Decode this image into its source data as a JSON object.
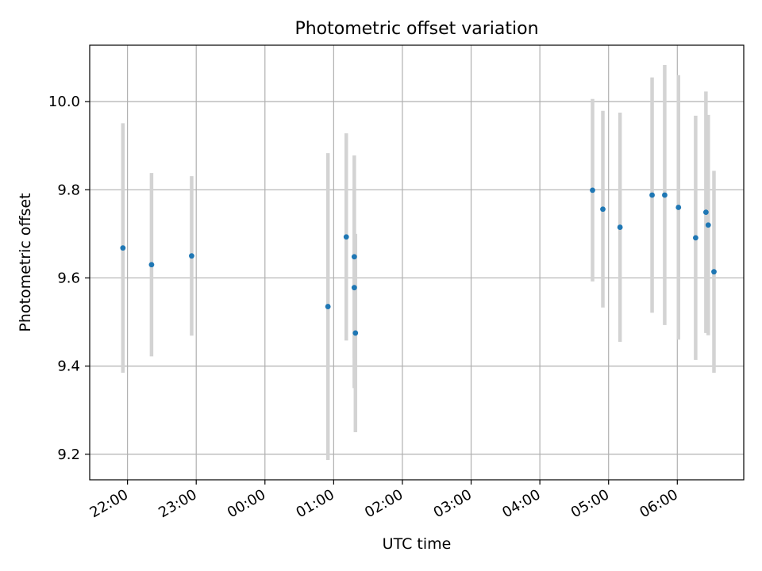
{
  "chart_data": {
    "type": "scatter",
    "title": "Photometric offset variation",
    "xlabel": "UTC time",
    "ylabel": "Photometric offset",
    "grid": true,
    "xlim": [
      "21:27",
      "06:58"
    ],
    "ylim": [
      9.142,
      10.128
    ],
    "x_ticks": [
      "22:00",
      "23:00",
      "00:00",
      "01:00",
      "02:00",
      "03:00",
      "04:00",
      "05:00",
      "06:00"
    ],
    "y_ticks": [
      9.2,
      9.4,
      9.6,
      9.8,
      10.0
    ],
    "y_tick_labels": [
      "9.2",
      "9.4",
      "9.6",
      "9.8",
      "10.0"
    ],
    "series": [
      {
        "marker_color": "#1f77b4",
        "errorbar_color": "#d3d3d3",
        "points": [
          {
            "x": "21:56",
            "y": 9.668,
            "ylow": 9.385,
            "yhigh": 9.951
          },
          {
            "x": "22:21",
            "y": 9.63,
            "ylow": 9.422,
            "yhigh": 9.838
          },
          {
            "x": "22:56",
            "y": 9.65,
            "ylow": 9.469,
            "yhigh": 9.831
          },
          {
            "x": "00:55",
            "y": 9.535,
            "ylow": 9.187,
            "yhigh": 9.883
          },
          {
            "x": "01:11",
            "y": 9.693,
            "ylow": 9.458,
            "yhigh": 9.928
          },
          {
            "x": "01:18",
            "y": 9.648,
            "ylow": 9.418,
            "yhigh": 9.878
          },
          {
            "x": "01:18",
            "y": 9.578,
            "ylow": 9.35,
            "yhigh": 9.806
          },
          {
            "x": "01:19",
            "y": 9.475,
            "ylow": 9.25,
            "yhigh": 9.7
          },
          {
            "x": "04:46",
            "y": 9.799,
            "ylow": 9.592,
            "yhigh": 10.006
          },
          {
            "x": "04:55",
            "y": 9.756,
            "ylow": 9.533,
            "yhigh": 9.979
          },
          {
            "x": "05:10",
            "y": 9.715,
            "ylow": 9.455,
            "yhigh": 9.975
          },
          {
            "x": "05:38",
            "y": 9.788,
            "ylow": 9.521,
            "yhigh": 10.055
          },
          {
            "x": "05:49",
            "y": 9.788,
            "ylow": 9.493,
            "yhigh": 10.083
          },
          {
            "x": "06:01",
            "y": 9.76,
            "ylow": 9.46,
            "yhigh": 10.06
          },
          {
            "x": "06:16",
            "y": 9.691,
            "ylow": 9.414,
            "yhigh": 9.968
          },
          {
            "x": "06:25",
            "y": 9.749,
            "ylow": 9.475,
            "yhigh": 10.023
          },
          {
            "x": "06:27",
            "y": 9.72,
            "ylow": 9.47,
            "yhigh": 9.97
          },
          {
            "x": "06:32",
            "y": 9.614,
            "ylow": 9.385,
            "yhigh": 9.843
          }
        ]
      }
    ]
  }
}
